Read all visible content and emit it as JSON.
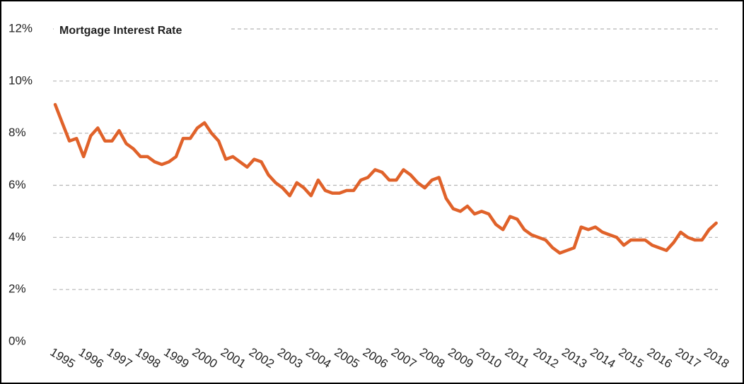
{
  "chart_data": {
    "type": "line",
    "title": "Mortgage Interest Rate",
    "categories": [
      "1995",
      null,
      null,
      null,
      "1996",
      null,
      null,
      null,
      "1997",
      null,
      null,
      null,
      "1998",
      null,
      null,
      null,
      "1999",
      null,
      null,
      null,
      "2000",
      null,
      null,
      null,
      "2001",
      null,
      null,
      null,
      "2002",
      null,
      null,
      null,
      "2003",
      null,
      null,
      null,
      "2004",
      null,
      null,
      null,
      "2005",
      null,
      null,
      null,
      "2006",
      null,
      null,
      null,
      "2007",
      null,
      null,
      null,
      "2008",
      null,
      null,
      null,
      "2009",
      null,
      null,
      null,
      "2010",
      null,
      null,
      null,
      "2011",
      null,
      null,
      null,
      "2012",
      null,
      null,
      null,
      "2013",
      null,
      null,
      null,
      "2014",
      null,
      null,
      null,
      "2015",
      null,
      null,
      null,
      "2016",
      null,
      null,
      null,
      "2017",
      null,
      null,
      null,
      "2018",
      null
    ],
    "series": [
      {
        "name": "Mortgage Interest Rate",
        "color": "#e0622a",
        "values": [
          9.1,
          8.4,
          7.7,
          7.8,
          7.1,
          7.9,
          8.2,
          7.7,
          7.7,
          8.1,
          7.6,
          7.4,
          7.1,
          7.1,
          6.9,
          6.8,
          6.9,
          7.1,
          7.8,
          7.8,
          8.2,
          8.4,
          8.0,
          7.7,
          7.0,
          7.1,
          6.9,
          6.7,
          7.0,
          6.9,
          6.4,
          6.1,
          5.9,
          5.6,
          6.1,
          5.9,
          5.6,
          6.2,
          5.8,
          5.7,
          5.7,
          5.8,
          5.8,
          6.2,
          6.3,
          6.6,
          6.5,
          6.2,
          6.2,
          6.6,
          6.4,
          6.1,
          5.9,
          6.2,
          6.3,
          5.5,
          5.1,
          5.0,
          5.2,
          4.9,
          5.0,
          4.9,
          4.5,
          4.3,
          4.8,
          4.7,
          4.3,
          4.1,
          4.0,
          3.9,
          3.6,
          3.4,
          3.5,
          3.6,
          4.4,
          4.3,
          4.4,
          4.2,
          4.1,
          4.0,
          3.7,
          3.9,
          3.9,
          3.9,
          3.7,
          3.6,
          3.5,
          3.8,
          4.2,
          4.0,
          3.9,
          3.9,
          4.3,
          4.55
        ]
      }
    ],
    "ylim": [
      0,
      12
    ],
    "yticks": [
      {
        "value": 0,
        "label": "0%"
      },
      {
        "value": 2,
        "label": "2%"
      },
      {
        "value": 4,
        "label": "4%"
      },
      {
        "value": 6,
        "label": "6%"
      },
      {
        "value": 8,
        "label": "8%"
      },
      {
        "value": 10,
        "label": "10%"
      },
      {
        "value": 12,
        "label": "12%"
      }
    ],
    "grid": true
  }
}
